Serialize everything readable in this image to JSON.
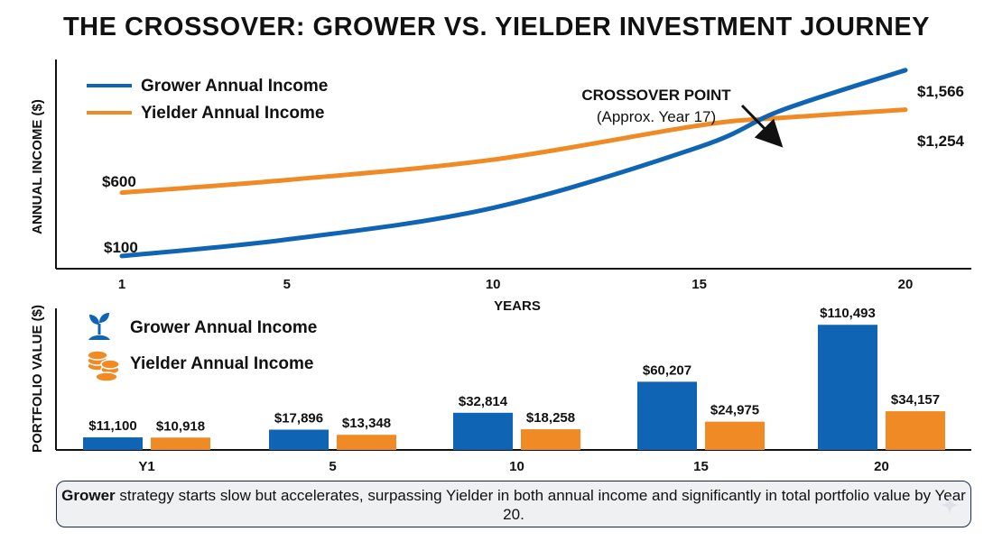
{
  "title": "THE CROSSOVER: GROWER VS. YIELDER INVESTMENT JOURNEY",
  "colors": {
    "grower": "#0f64b4",
    "yielder": "#f08a24",
    "axis": "#111111"
  },
  "chart_data": [
    {
      "type": "line",
      "ylabel": "ANNUAL INCOME ($)",
      "xlabel": "YEARS",
      "x_ticks": [
        "1",
        "5",
        "10",
        "15",
        "20"
      ],
      "xlim": [
        1,
        20
      ],
      "ylim": [
        0,
        1650
      ],
      "legend_position": "top-left",
      "series": [
        {
          "name": "Grower Annual Income",
          "x": [
            1,
            5,
            10,
            15,
            17,
            20
          ],
          "y": [
            100,
            230,
            480,
            960,
            1250,
            1566
          ]
        },
        {
          "name": "Yielder Annual Income",
          "x": [
            1,
            5,
            10,
            15,
            17,
            20
          ],
          "y": [
            600,
            700,
            860,
            1130,
            1190,
            1254
          ]
        }
      ],
      "data_labels": [
        {
          "text": "$600",
          "series": "Yielder Annual Income",
          "x": 1,
          "y": 600
        },
        {
          "text": "$100",
          "series": "Grower Annual Income",
          "x": 1,
          "y": 100
        },
        {
          "text": "$1,566",
          "series": "Grower Annual Income",
          "x": 20,
          "y": 1566
        },
        {
          "text": "$1,254",
          "series": "Yielder Annual Income",
          "x": 20,
          "y": 1254
        }
      ],
      "annotation": {
        "title": "CROSSOVER POINT",
        "subtitle": "(Approx. Year 17)",
        "x": 17,
        "y": 1250,
        "icon": "arrow-icon"
      }
    },
    {
      "type": "bar",
      "ylabel": "PORTFOLIO VALUE ($)",
      "categories": [
        "Y1",
        "5",
        "10",
        "15",
        "20"
      ],
      "ylim": [
        0,
        125000
      ],
      "legend_position": "top-left",
      "series": [
        {
          "name": "Grower Annual Income",
          "icon": "seedling-icon",
          "values": [
            11100,
            17896,
            32814,
            60207,
            110493
          ],
          "labels": [
            "$11,100",
            "$17,896",
            "$32,814",
            "$60,207",
            "$110,493"
          ]
        },
        {
          "name": "Yielder Annual Income",
          "icon": "coins-icon",
          "values": [
            10918,
            13348,
            18258,
            24975,
            34157
          ],
          "labels": [
            "$10,918",
            "$13,348",
            "$18,258",
            "$24,975",
            "$34,157"
          ]
        }
      ]
    }
  ],
  "summary": {
    "bold": "Grower",
    "text": " strategy starts slow but accelerates, surpassing Yielder in both annual income and significantly in total portfolio value by Year 20."
  }
}
